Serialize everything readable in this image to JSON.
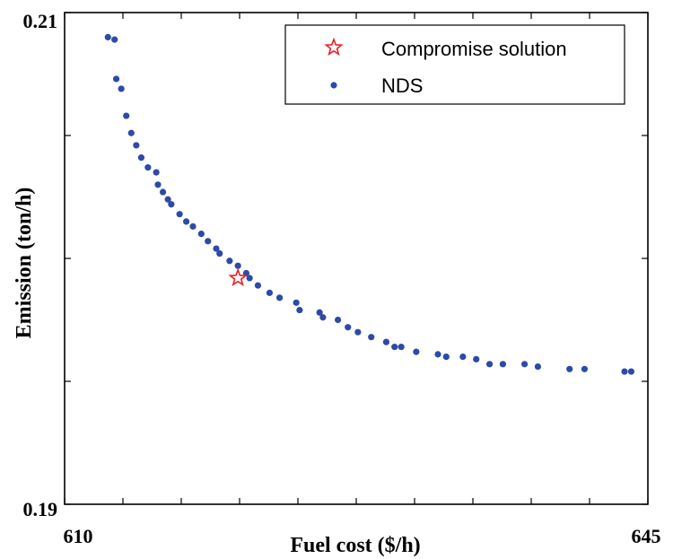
{
  "chart_data": {
    "type": "scatter",
    "title": "",
    "xlabel": "Fuel cost ($/h)",
    "ylabel": "Emission (ton/h)",
    "xlim": [
      610,
      645
    ],
    "ylim": [
      0.19,
      0.21
    ],
    "x_tick_labels": [
      "610",
      "645"
    ],
    "y_tick_labels": [
      "0.21",
      "0.19"
    ],
    "x_ticks": [
      610,
      613.5,
      617,
      620.5,
      624,
      627.5,
      631,
      634.5,
      638,
      641.5,
      645
    ],
    "y_ticks": [
      0.19,
      0.195,
      0.2,
      0.205,
      0.21
    ],
    "legend_position": "top-right",
    "series": [
      {
        "name": "NDS",
        "marker": "dot",
        "color": "#2d4aa8",
        "x": [
          612.6,
          613.0,
          613.1,
          613.4,
          613.7,
          614.0,
          614.3,
          614.6,
          615.0,
          615.5,
          615.6,
          615.9,
          616.2,
          616.4,
          616.9,
          617.3,
          617.7,
          618.2,
          618.6,
          619.1,
          619.3,
          619.9,
          620.4,
          620.9,
          621.1,
          621.6,
          622.3,
          622.9,
          623.9,
          624.1,
          625.3,
          625.5,
          626.4,
          627.0,
          627.6,
          628.4,
          629.3,
          629.8,
          630.2,
          631.1,
          632.4,
          632.9,
          633.9,
          634.7,
          635.5,
          636.3,
          637.6,
          638.4,
          640.3,
          641.2,
          643.6,
          644.0
        ],
        "y": [
          0.209,
          0.2089,
          0.2073,
          0.2069,
          0.2058,
          0.2051,
          0.2046,
          0.2041,
          0.2037,
          0.2035,
          0.203,
          0.2027,
          0.2024,
          0.2022,
          0.2018,
          0.2015,
          0.2013,
          0.201,
          0.2007,
          0.2004,
          0.2002,
          0.1999,
          0.1997,
          0.1994,
          0.1992,
          0.1989,
          0.1986,
          0.1984,
          0.1982,
          0.1979,
          0.1978,
          0.1976,
          0.1975,
          0.1972,
          0.197,
          0.1968,
          0.1966,
          0.1964,
          0.1964,
          0.1962,
          0.1961,
          0.196,
          0.196,
          0.1959,
          0.1957,
          0.1957,
          0.1957,
          0.1956,
          0.1955,
          0.1955,
          0.1954,
          0.1954
        ]
      },
      {
        "name": "Compromise solution",
        "marker": "star",
        "color": "#e8202a",
        "x": [
          620.4
        ],
        "y": [
          0.1992
        ]
      }
    ]
  }
}
